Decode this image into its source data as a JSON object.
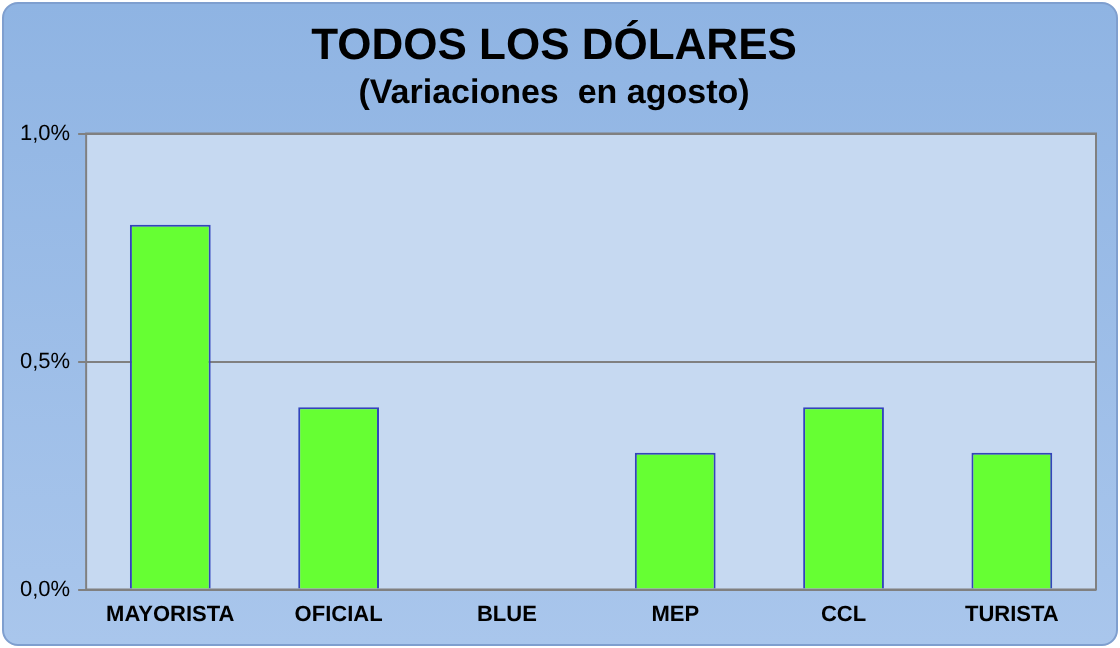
{
  "chart_data": {
    "type": "bar",
    "title": "TODOS LOS DÓLARES",
    "subtitle": "(Variaciones  en agosto)",
    "categories": [
      "MAYORISTA",
      "OFICIAL",
      "BLUE",
      "MEP",
      "CCL",
      "TURISTA"
    ],
    "values": [
      0.8,
      0.4,
      0,
      0.3,
      0.4,
      0.3
    ],
    "color": "#66ff33",
    "ylim": [
      0,
      1
    ],
    "yticks": [
      {
        "value": 0,
        "label": "0,0%"
      },
      {
        "value": 0.5,
        "label": "0,5%"
      },
      {
        "value": 1,
        "label": "1,0%"
      }
    ],
    "grid": "y",
    "legend": false
  }
}
